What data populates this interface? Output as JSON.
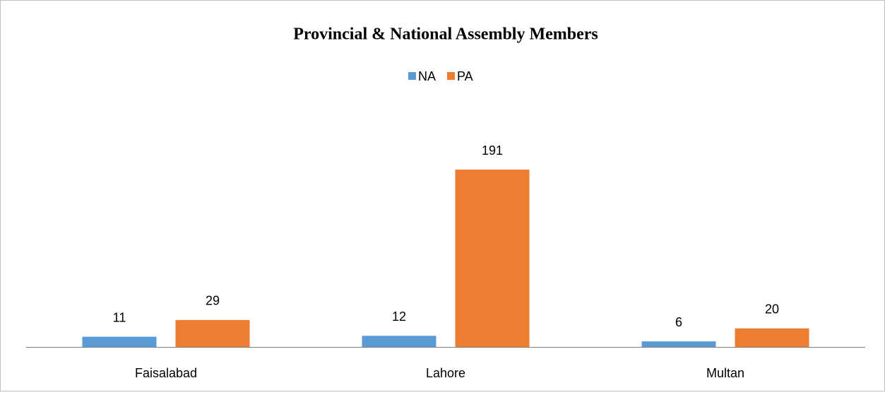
{
  "chart_data": {
    "type": "bar",
    "title": "Provincial & National Assembly Members",
    "categories": [
      "Faisalabad",
      "Lahore",
      "Multan"
    ],
    "series": [
      {
        "name": "NA",
        "color": "#5b9bd5",
        "values": [
          11,
          12,
          6
        ]
      },
      {
        "name": "PA",
        "color": "#ed7d31",
        "values": [
          29,
          191,
          20
        ]
      }
    ],
    "legend": "top"
  }
}
